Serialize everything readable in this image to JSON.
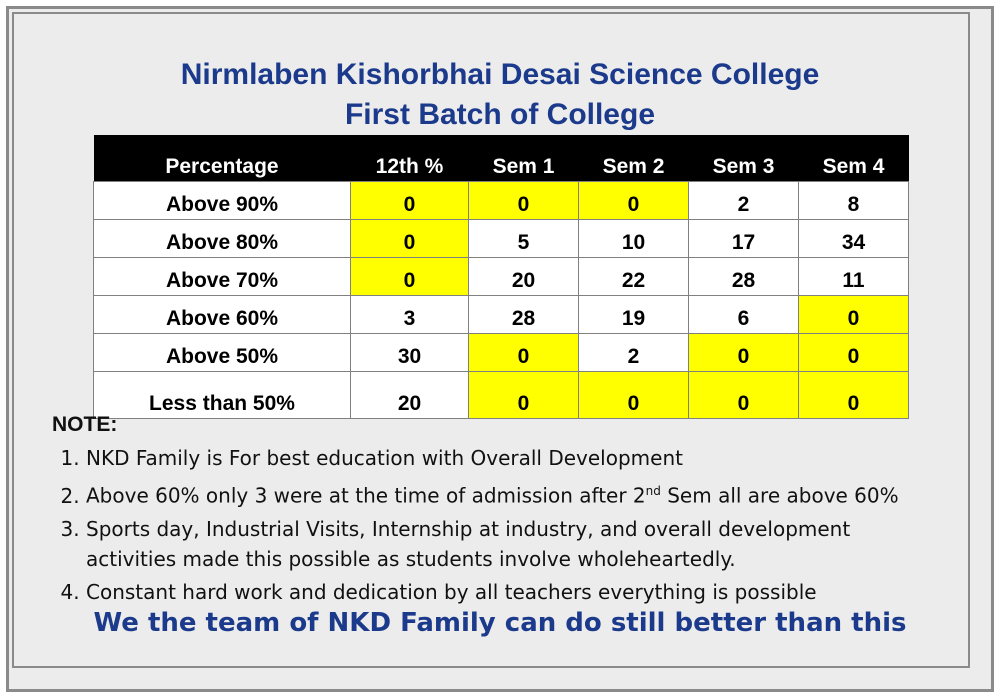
{
  "title": {
    "line1": "Nirmlaben Kishorbhai Desai Science College",
    "line2": "First Batch of College"
  },
  "table": {
    "headers": [
      "Percentage",
      "12th %",
      "Sem 1",
      "Sem 2",
      "Sem 3",
      "Sem 4"
    ],
    "rows": [
      {
        "label": "Above 90%",
        "cells": [
          "0",
          "0",
          "0",
          "2",
          "8"
        ]
      },
      {
        "label": "Above 80%",
        "cells": [
          "0",
          "5",
          "10",
          "17",
          "34"
        ]
      },
      {
        "label": "Above 70%",
        "cells": [
          "0",
          "20",
          "22",
          "28",
          "11"
        ]
      },
      {
        "label": "Above 60%",
        "cells": [
          "3",
          "28",
          "19",
          "6",
          "0"
        ]
      },
      {
        "label": "Above 50%",
        "cells": [
          "30",
          "0",
          "2",
          "0",
          "0"
        ]
      },
      {
        "label": "Less than 50%",
        "cells": [
          "20",
          "0",
          "0",
          "0",
          "0"
        ]
      }
    ],
    "highlight_color": "#ffff00"
  },
  "notes": {
    "heading": "NOTE:",
    "item1": "NKD Family is For best education with Overall Development",
    "item2_before": "Above 60% only 3 were at the time of admission after 2",
    "item2_sup": "nd",
    "item2_after": " Sem all are above 60%",
    "item3_line1": "Sports day, Industrial Visits, Internship at industry, and overall development",
    "item3_line2": "activities made this possible as students involve wholeheartedly.",
    "item4": "Constant hard work and dedication by all teachers everything is possible"
  },
  "footer": "We the team of NKD Family can do still better than this",
  "colors": {
    "title": "#1b3a8c",
    "header_bg": "#000000",
    "background": "#ececec"
  }
}
